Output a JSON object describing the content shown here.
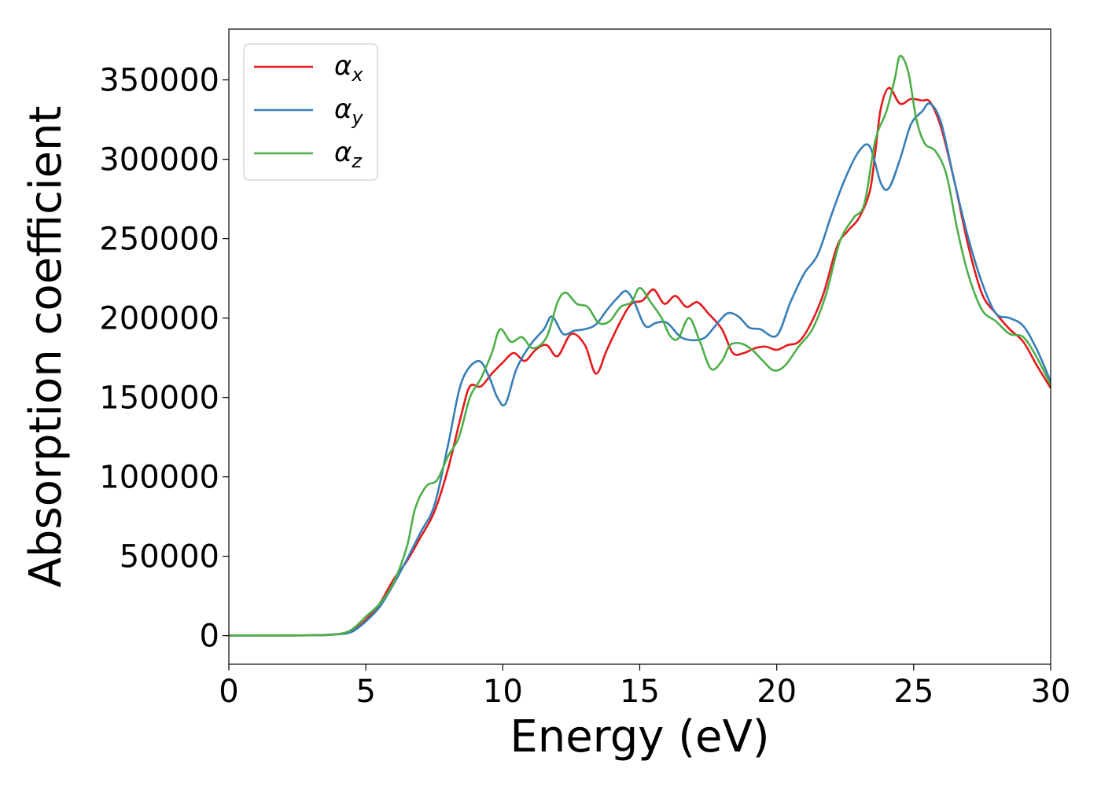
{
  "chart_data": {
    "type": "line",
    "title": "",
    "xlabel": "Energy (eV)",
    "ylabel": "Absorption coefficient",
    "xlim": [
      0,
      30
    ],
    "ylim": [
      -18000,
      382000
    ],
    "xticks": [
      0,
      5,
      10,
      15,
      20,
      25,
      30
    ],
    "yticks": [
      0,
      50000,
      100000,
      150000,
      200000,
      250000,
      300000,
      350000
    ],
    "grid": false,
    "legend_position": "top-left",
    "series": [
      {
        "name": "α_x",
        "symbol": "α",
        "subscript": "x",
        "color": "#e41a1c",
        "points": [
          [
            0,
            0
          ],
          [
            3,
            200
          ],
          [
            4,
            1000
          ],
          [
            4.5,
            3000
          ],
          [
            5,
            10000
          ],
          [
            5.5,
            20000
          ],
          [
            6,
            35000
          ],
          [
            6.5,
            47000
          ],
          [
            7,
            62000
          ],
          [
            7.5,
            78000
          ],
          [
            8,
            105000
          ],
          [
            8.5,
            140000
          ],
          [
            8.8,
            157000
          ],
          [
            9.2,
            157000
          ],
          [
            9.6,
            165000
          ],
          [
            10,
            172000
          ],
          [
            10.4,
            178000
          ],
          [
            10.8,
            173000
          ],
          [
            11.2,
            180000
          ],
          [
            11.6,
            183000
          ],
          [
            12,
            176000
          ],
          [
            12.5,
            190000
          ],
          [
            13,
            183000
          ],
          [
            13.4,
            165000
          ],
          [
            13.8,
            180000
          ],
          [
            14.3,
            198000
          ],
          [
            14.7,
            209000
          ],
          [
            15.1,
            211000
          ],
          [
            15.5,
            218000
          ],
          [
            15.9,
            209000
          ],
          [
            16.3,
            214000
          ],
          [
            16.7,
            207000
          ],
          [
            17.1,
            210000
          ],
          [
            17.5,
            203000
          ],
          [
            18,
            193000
          ],
          [
            18.4,
            178000
          ],
          [
            18.8,
            178000
          ],
          [
            19.2,
            181000
          ],
          [
            19.6,
            182000
          ],
          [
            20,
            180000
          ],
          [
            20.4,
            183000
          ],
          [
            20.8,
            185000
          ],
          [
            21.2,
            195000
          ],
          [
            21.7,
            215000
          ],
          [
            22.2,
            245000
          ],
          [
            22.6,
            255000
          ],
          [
            23,
            263000
          ],
          [
            23.4,
            280000
          ],
          [
            23.6,
            305000
          ],
          [
            23.8,
            332000
          ],
          [
            24.1,
            345000
          ],
          [
            24.5,
            335000
          ],
          [
            24.9,
            338000
          ],
          [
            25.3,
            337000
          ],
          [
            25.6,
            336000
          ],
          [
            26,
            320000
          ],
          [
            26.5,
            285000
          ],
          [
            27,
            245000
          ],
          [
            27.5,
            215000
          ],
          [
            28,
            203000
          ],
          [
            28.5,
            193000
          ],
          [
            29,
            185000
          ],
          [
            29.5,
            170000
          ],
          [
            30,
            156000
          ]
        ]
      },
      {
        "name": "α_y",
        "symbol": "α",
        "subscript": "y",
        "color": "#377eb8",
        "points": [
          [
            0,
            0
          ],
          [
            3,
            200
          ],
          [
            4,
            900
          ],
          [
            4.5,
            2500
          ],
          [
            5,
            9000
          ],
          [
            5.5,
            18000
          ],
          [
            6,
            32000
          ],
          [
            6.5,
            48000
          ],
          [
            7,
            65000
          ],
          [
            7.5,
            82000
          ],
          [
            8,
            120000
          ],
          [
            8.5,
            160000
          ],
          [
            9.1,
            173000
          ],
          [
            9.5,
            163000
          ],
          [
            9.8,
            150000
          ],
          [
            10.1,
            146000
          ],
          [
            10.5,
            168000
          ],
          [
            11,
            183000
          ],
          [
            11.5,
            193000
          ],
          [
            11.8,
            201000
          ],
          [
            12.2,
            190000
          ],
          [
            12.6,
            192000
          ],
          [
            13,
            193000
          ],
          [
            13.4,
            196000
          ],
          [
            13.8,
            205000
          ],
          [
            14.2,
            213000
          ],
          [
            14.5,
            217000
          ],
          [
            14.8,
            210000
          ],
          [
            15.2,
            195000
          ],
          [
            15.6,
            197000
          ],
          [
            16,
            197000
          ],
          [
            16.5,
            188000
          ],
          [
            17,
            186000
          ],
          [
            17.4,
            188000
          ],
          [
            17.8,
            196000
          ],
          [
            18.2,
            203000
          ],
          [
            18.6,
            201000
          ],
          [
            19,
            194000
          ],
          [
            19.4,
            193000
          ],
          [
            20,
            189000
          ],
          [
            20.5,
            210000
          ],
          [
            21,
            228000
          ],
          [
            21.5,
            240000
          ],
          [
            22,
            265000
          ],
          [
            22.5,
            288000
          ],
          [
            23,
            305000
          ],
          [
            23.4,
            308000
          ],
          [
            23.8,
            285000
          ],
          [
            24.1,
            282000
          ],
          [
            24.5,
            300000
          ],
          [
            24.9,
            322000
          ],
          [
            25.3,
            330000
          ],
          [
            25.6,
            335000
          ],
          [
            26,
            323000
          ],
          [
            26.5,
            285000
          ],
          [
            27,
            250000
          ],
          [
            27.5,
            222000
          ],
          [
            28,
            203000
          ],
          [
            28.5,
            200000
          ],
          [
            29,
            195000
          ],
          [
            29.5,
            180000
          ],
          [
            30,
            160000
          ]
        ]
      },
      {
        "name": "α_z",
        "symbol": "α",
        "subscript": "z",
        "color": "#4daf4a",
        "points": [
          [
            0,
            0
          ],
          [
            3,
            200
          ],
          [
            4,
            1000
          ],
          [
            4.5,
            4000
          ],
          [
            5,
            12000
          ],
          [
            5.5,
            20000
          ],
          [
            6,
            33000
          ],
          [
            6.5,
            56000
          ],
          [
            6.8,
            80000
          ],
          [
            7.2,
            94000
          ],
          [
            7.6,
            98000
          ],
          [
            8,
            113000
          ],
          [
            8.4,
            125000
          ],
          [
            8.8,
            150000
          ],
          [
            9.2,
            162000
          ],
          [
            9.6,
            178000
          ],
          [
            9.9,
            193000
          ],
          [
            10.3,
            185000
          ],
          [
            10.7,
            188000
          ],
          [
            11.1,
            181000
          ],
          [
            11.6,
            188000
          ],
          [
            12,
            210000
          ],
          [
            12.3,
            216000
          ],
          [
            12.7,
            209000
          ],
          [
            13.1,
            207000
          ],
          [
            13.5,
            197000
          ],
          [
            13.9,
            198000
          ],
          [
            14.3,
            207000
          ],
          [
            14.7,
            210000
          ],
          [
            15,
            219000
          ],
          [
            15.4,
            210000
          ],
          [
            15.8,
            200000
          ],
          [
            16.1,
            189000
          ],
          [
            16.4,
            187000
          ],
          [
            16.8,
            200000
          ],
          [
            17.2,
            185000
          ],
          [
            17.6,
            168000
          ],
          [
            18,
            173000
          ],
          [
            18.3,
            183000
          ],
          [
            18.7,
            184000
          ],
          [
            19.1,
            180000
          ],
          [
            19.5,
            173000
          ],
          [
            19.9,
            167000
          ],
          [
            20.3,
            170000
          ],
          [
            20.8,
            182000
          ],
          [
            21.3,
            193000
          ],
          [
            21.8,
            215000
          ],
          [
            22.3,
            248000
          ],
          [
            22.8,
            263000
          ],
          [
            23.2,
            272000
          ],
          [
            23.6,
            312000
          ],
          [
            24,
            330000
          ],
          [
            24.3,
            350000
          ],
          [
            24.5,
            365000
          ],
          [
            24.8,
            355000
          ],
          [
            25.1,
            325000
          ],
          [
            25.4,
            310000
          ],
          [
            25.8,
            305000
          ],
          [
            26.2,
            290000
          ],
          [
            26.6,
            255000
          ],
          [
            27,
            227000
          ],
          [
            27.5,
            205000
          ],
          [
            28,
            198000
          ],
          [
            28.5,
            190000
          ],
          [
            29,
            188000
          ],
          [
            29.5,
            175000
          ],
          [
            30,
            158000
          ]
        ]
      }
    ]
  }
}
